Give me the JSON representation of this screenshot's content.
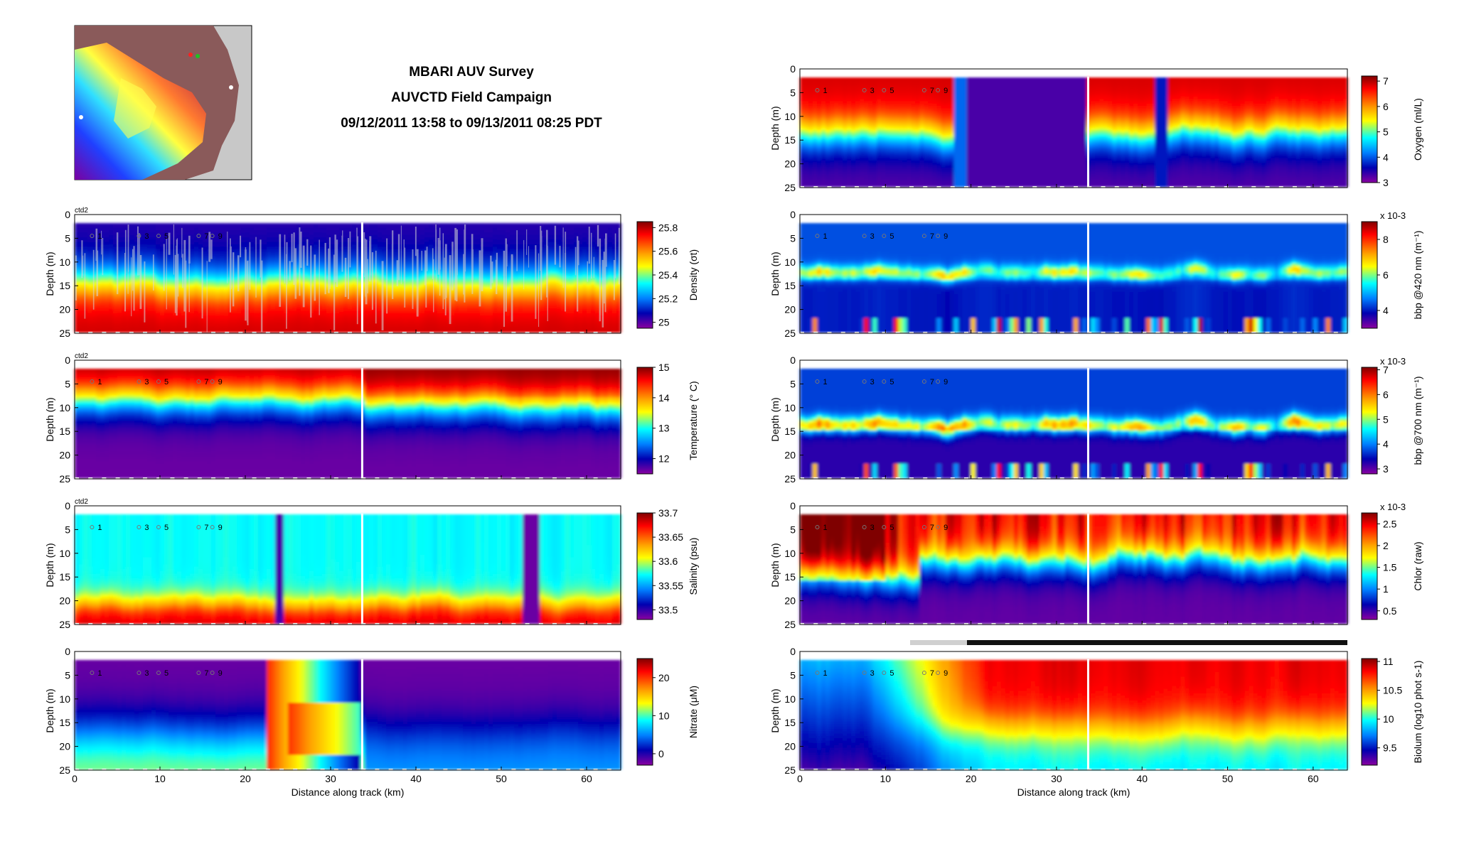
{
  "title": {
    "line1": "MBARI AUV Survey",
    "line2": "AUVCTD Field Campaign",
    "line3": "09/12/2011 13:58 to 09/13/2011 08:25 PDT"
  },
  "shared": {
    "xlabel": "Distance along track (km)",
    "ylabel": "Depth (m)",
    "x_ticks": [
      0,
      10,
      20,
      30,
      40,
      50,
      60
    ],
    "y_ticks": [
      0,
      5,
      10,
      15,
      20,
      25
    ],
    "xlim": [
      0,
      64
    ],
    "ylim": [
      0,
      25
    ],
    "station_markers": [
      "1",
      "3",
      "5",
      "7",
      "9"
    ]
  },
  "chart_data": [
    {
      "type": "heatmap",
      "column": "left",
      "row": 0,
      "id": "density",
      "tag": "ctd2",
      "cbar_label": "Density (σt)",
      "cbar_ticks": [
        "25",
        "25.2",
        "25.4",
        "25.6",
        "25.8"
      ],
      "cbar_values": [
        25.0,
        25.2,
        25.4,
        25.6,
        25.8
      ],
      "clim": [
        24.95,
        25.85
      ],
      "cmap_reversed": true,
      "ylabel": "Depth (m)",
      "xlabel": "",
      "xlim": [
        0,
        64
      ],
      "ylim": [
        0,
        25
      ]
    },
    {
      "type": "heatmap",
      "column": "left",
      "row": 1,
      "id": "temperature",
      "tag": "ctd2",
      "cbar_label": "Temperature (° C)",
      "cbar_ticks": [
        "15",
        "14",
        "13",
        "12"
      ],
      "cbar_values": [
        15,
        14,
        13,
        12
      ],
      "clim": [
        11.5,
        15.0
      ],
      "cmap_reversed": true,
      "ylabel": "Depth (m)",
      "xlabel": "",
      "xlim": [
        0,
        64
      ],
      "ylim": [
        0,
        25
      ]
    },
    {
      "type": "heatmap",
      "column": "left",
      "row": 2,
      "id": "salinity",
      "tag": "ctd2",
      "cbar_label": "Salinity (psu)",
      "cbar_ticks": [
        "33.5",
        "33.55",
        "33.6",
        "33.65",
        "33.7"
      ],
      "cbar_values": [
        33.5,
        33.55,
        33.6,
        33.65,
        33.7
      ],
      "clim": [
        33.48,
        33.7
      ],
      "cmap_reversed": true,
      "ylabel": "Depth (m)",
      "xlabel": "",
      "xlim": [
        0,
        64
      ],
      "ylim": [
        0,
        25
      ]
    },
    {
      "type": "heatmap",
      "column": "left",
      "row": 3,
      "id": "nitrate",
      "tag": "",
      "cbar_label": "Nitrate (μM)",
      "cbar_ticks": [
        "0",
        "10",
        "20"
      ],
      "cbar_values": [
        0,
        10,
        20
      ],
      "clim": [
        -3,
        25
      ],
      "cmap_reversed": true,
      "ylabel": "Depth (m)",
      "xlabel": "Distance along track (km)",
      "xlim": [
        0,
        64
      ],
      "ylim": [
        0,
        25
      ]
    },
    {
      "type": "heatmap",
      "column": "right",
      "row": 0,
      "id": "oxygen",
      "tag": "",
      "cbar_label": "Oxygen (ml/L)",
      "cbar_ticks": [
        "7",
        "6",
        "5",
        "4",
        "3"
      ],
      "cbar_values": [
        7,
        6,
        5,
        4,
        3
      ],
      "clim": [
        3,
        7.2
      ],
      "cmap_reversed": true,
      "ylabel": "Depth (m)",
      "xlabel": "",
      "xlim": [
        0,
        64
      ],
      "ylim": [
        0,
        25
      ]
    },
    {
      "type": "heatmap",
      "column": "right",
      "row": 1,
      "id": "bbp420",
      "tag": "",
      "cbar_label": "bbp @420 nm (m⁻¹)",
      "cbar_exponent": "x 10-3",
      "cbar_ticks": [
        "8",
        "6",
        "4"
      ],
      "cbar_values": [
        8,
        6,
        4
      ],
      "clim": [
        3,
        9
      ],
      "cmap_reversed": true,
      "ylabel": "Depth (m)",
      "xlabel": "",
      "xlim": [
        0,
        64
      ],
      "ylim": [
        0,
        25
      ]
    },
    {
      "type": "heatmap",
      "column": "right",
      "row": 2,
      "id": "bbp700",
      "tag": "",
      "cbar_label": "bbp @700 nm (m⁻¹)",
      "cbar_exponent": "x 10-3",
      "cbar_ticks": [
        "7",
        "6",
        "5",
        "4",
        "3"
      ],
      "cbar_values": [
        7,
        6,
        5,
        4,
        3
      ],
      "clim": [
        2.8,
        7.1
      ],
      "cmap_reversed": true,
      "ylabel": "Depth (m)",
      "xlabel": "",
      "xlim": [
        0,
        64
      ],
      "ylim": [
        0,
        25
      ]
    },
    {
      "type": "heatmap",
      "column": "right",
      "row": 3,
      "id": "chlor",
      "tag": "",
      "cbar_label": "Chlor (raw)",
      "cbar_exponent": "x 10-3",
      "cbar_ticks": [
        "2.5",
        "2",
        "1.5",
        "1",
        "0.5"
      ],
      "cbar_values": [
        2.5,
        2,
        1.5,
        1,
        0.5
      ],
      "clim": [
        0.3,
        2.75
      ],
      "cmap_reversed": true,
      "ylabel": "Depth (m)",
      "xlabel": "",
      "xlim": [
        0,
        64
      ],
      "ylim": [
        0,
        25
      ]
    },
    {
      "type": "heatmap",
      "column": "right",
      "row": 4,
      "id": "biolum",
      "tag": "",
      "cbar_label": "Biolum (log10 phot s-1)",
      "cbar_ticks": [
        "11",
        "10.5",
        "10",
        "9.5"
      ],
      "cbar_values": [
        11,
        10.5,
        10,
        9.5
      ],
      "clim": [
        9.2,
        11.05
      ],
      "cmap_reversed": true,
      "ylabel": "Depth (m)",
      "xlabel": "Distance along track (km)",
      "xlim": [
        0,
        64
      ],
      "ylim": [
        0,
        25
      ]
    }
  ],
  "colors": {
    "background": "#ffffff",
    "map_land": "#c8c8c8",
    "map_shelf": "#8a5a5a",
    "gap_line": "#ffffff",
    "axis": "#000000"
  }
}
